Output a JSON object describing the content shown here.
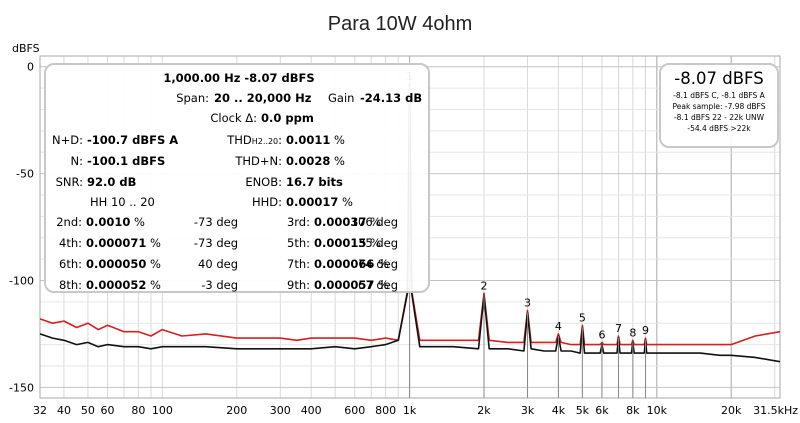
{
  "title": "Para 10W 4ohm",
  "ylabel": "dBFS",
  "colors": {
    "red_trace": "#d42020",
    "black_trace": "#111111",
    "marker": "#888888",
    "grid": "#d9d9d9",
    "axis": "#aaaaaa"
  },
  "stats_panel": {
    "line1": "1,000.00 Hz  -8.07 dBFS",
    "span_label": "Span:",
    "span_value": "20 .. 20,000 Hz",
    "gain_label": "Gain",
    "gain_value": "-24.13 dB",
    "clock_label": "Clock Δ:",
    "clock_value": "0.0 ppm",
    "nd_label": "N+D:",
    "nd_value": "-100.7 dBFS A",
    "thd_label": "THD",
    "thd_sub": "H2..20",
    "thd_value": "0.0011",
    "thd_unit": "%",
    "n_label": "N:",
    "n_value": "-100.1 dBFS",
    "thdn_label": "THD+N:",
    "thdn_value": "0.0028",
    "thdn_unit": "%",
    "snr_label": "SNR:",
    "snr_value": "92.0 dB",
    "enob_label": "ENOB:",
    "enob_value": "16.7 bits",
    "hh_label": "HH 10 .. 20",
    "hhd_label": "HHD:",
    "hhd_value": "0.00017",
    "hhd_unit": "%",
    "harmonics": [
      {
        "label": "2nd:",
        "value": "0.0010",
        "unit": "%",
        "phase": "-73 deg"
      },
      {
        "label": "3rd:",
        "value": "0.00037",
        "unit": "%",
        "phase": "106 deg"
      },
      {
        "label": "4th:",
        "value": "0.000071",
        "unit": "%",
        "phase": "-73 deg"
      },
      {
        "label": "5th:",
        "value": "0.00015",
        "unit": "%",
        "phase": "35 deg"
      },
      {
        "label": "6th:",
        "value": "0.000050",
        "unit": "%",
        "phase": "40 deg"
      },
      {
        "label": "7th:",
        "value": "0.000066",
        "unit": "%",
        "phase": "74 deg"
      },
      {
        "label": "8th:",
        "value": "0.000052",
        "unit": "%",
        "phase": "-3 deg"
      },
      {
        "label": "9th:",
        "value": "0.000057",
        "unit": "%",
        "phase": "67 deg"
      }
    ]
  },
  "level_panel": {
    "main": "-8.07 dBFS",
    "lines": [
      "-8.1 dBFS C, -8.1 dBFS A",
      "Peak sample: -7.98 dBFS",
      "-8.1 dBFS 22 - 22k UNW",
      "-54.4 dBFS >22k"
    ]
  },
  "chart_data": {
    "type": "line",
    "title": "Para 10W 4ohm",
    "xlabel": "",
    "ylabel": "dBFS",
    "xscale": "log",
    "xlim": [
      32,
      31500
    ],
    "ylim": [
      -155,
      5
    ],
    "x_ticks": [
      32,
      40,
      50,
      60,
      80,
      100,
      200,
      300,
      400,
      600,
      800,
      1000,
      2000,
      3000,
      4000,
      5000,
      6000,
      8000,
      10000,
      20000,
      31500
    ],
    "x_tick_labels": [
      "32",
      "40",
      "50",
      "60",
      "80",
      "100",
      "200",
      "300",
      "400",
      "600",
      "800",
      "1k",
      "2k",
      "3k",
      "4k",
      "5k",
      "6k",
      "8k",
      "10k",
      "20k",
      "31.5kHz"
    ],
    "y_ticks": [
      0,
      -50,
      -100,
      -150
    ],
    "y_tick_labels": [
      "0",
      "-50",
      "-100",
      "-150"
    ],
    "grid": true,
    "markers": [
      {
        "label": "1",
        "x": 1000,
        "y": -8.07
      },
      {
        "label": "2",
        "x": 2000,
        "y": -106
      },
      {
        "label": "3",
        "x": 3000,
        "y": -114
      },
      {
        "label": "4",
        "x": 4000,
        "y": -125
      },
      {
        "label": "5",
        "x": 5000,
        "y": -121
      },
      {
        "label": "6",
        "x": 6000,
        "y": -129
      },
      {
        "label": "7",
        "x": 7000,
        "y": -126
      },
      {
        "label": "8",
        "x": 8000,
        "y": -128
      },
      {
        "label": "9",
        "x": 9000,
        "y": -127
      }
    ],
    "series": [
      {
        "color": "#d42020",
        "x": [
          32,
          36,
          40,
          45,
          50,
          55,
          60,
          70,
          80,
          90,
          100,
          120,
          150,
          200,
          250,
          300,
          350,
          400,
          500,
          600,
          700,
          800,
          900,
          980,
          1000,
          1020,
          1100,
          1500,
          1900,
          2000,
          2100,
          2500,
          2900,
          3000,
          3100,
          3500,
          3900,
          4000,
          4100,
          4500,
          4900,
          5000,
          5100,
          5500,
          5900,
          6000,
          6100,
          6500,
          6900,
          7000,
          7100,
          7500,
          7900,
          8000,
          8100,
          8500,
          8900,
          9000,
          9100,
          10000,
          12000,
          15000,
          18000,
          20000,
          25000,
          31500
        ],
        "y": [
          -118,
          -120,
          -119,
          -122,
          -120,
          -123,
          -121,
          -124,
          -124,
          -126,
          -123,
          -126,
          -125,
          -127,
          -127,
          -127,
          -128,
          -127,
          -127,
          -127,
          -128,
          -127,
          -128,
          -105,
          -8.07,
          -105,
          -128,
          -128,
          -128,
          -106,
          -128,
          -129,
          -129,
          -114,
          -129,
          -129,
          -129,
          -125,
          -129,
          -130,
          -130,
          -121,
          -130,
          -130,
          -130,
          -129,
          -130,
          -130,
          -130,
          -126,
          -130,
          -130,
          -130,
          -128,
          -130,
          -130,
          -130,
          -127,
          -130,
          -130,
          -130,
          -130,
          -130,
          -130,
          -126,
          -124
        ]
      },
      {
        "color": "#111111",
        "x": [
          32,
          36,
          40,
          45,
          50,
          55,
          60,
          70,
          80,
          90,
          100,
          120,
          150,
          200,
          250,
          300,
          350,
          400,
          500,
          600,
          700,
          800,
          900,
          980,
          1000,
          1020,
          1100,
          1500,
          1900,
          2000,
          2100,
          2500,
          2900,
          3000,
          3100,
          3500,
          3900,
          4000,
          4100,
          4500,
          4900,
          5000,
          5100,
          5500,
          5900,
          6000,
          6100,
          6500,
          6900,
          7000,
          7100,
          7500,
          7900,
          8000,
          8100,
          8500,
          8900,
          9000,
          9100,
          10000,
          12000,
          15000,
          18000,
          20000,
          25000,
          31500
        ],
        "y": [
          -125,
          -127,
          -128,
          -130,
          -129,
          -131,
          -130,
          -131,
          -131,
          -132,
          -131,
          -131,
          -131,
          -132,
          -132,
          -132,
          -132,
          -132,
          -131,
          -132,
          -131,
          -130,
          -128,
          -106,
          -8.07,
          -106,
          -131,
          -131,
          -132,
          -107,
          -132,
          -132,
          -133,
          -115,
          -132,
          -133,
          -133,
          -126,
          -133,
          -133,
          -134,
          -122,
          -134,
          -134,
          -134,
          -130,
          -134,
          -134,
          -134,
          -127,
          -134,
          -134,
          -134,
          -129,
          -134,
          -134,
          -134,
          -128,
          -134,
          -134,
          -134,
          -134,
          -135,
          -135,
          -136,
          -138
        ]
      }
    ]
  }
}
